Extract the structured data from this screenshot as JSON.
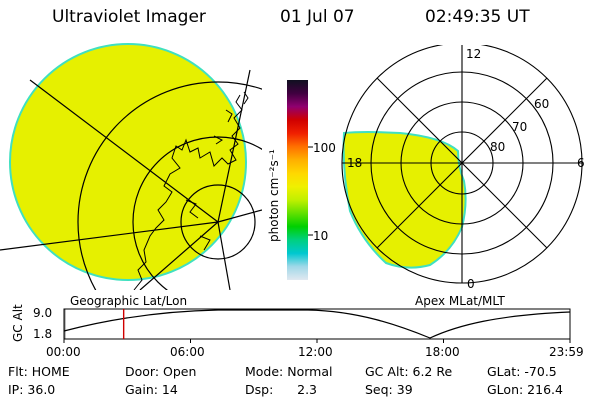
{
  "header": {
    "instrument": "Ultraviolet Imager",
    "date": "01 Jul 07",
    "time": "02:49:35 UT"
  },
  "geo_panel": {
    "label": "Geographic Lat/Lon",
    "fill_color": "#e6f000",
    "limb_color": "#40e0c0"
  },
  "polar_panel": {
    "label": "Apex MLat/MLT",
    "mlt_labels": [
      "12",
      "18",
      "6",
      "0"
    ],
    "lat_labels": [
      "60",
      "70",
      "80"
    ]
  },
  "colorbar": {
    "label": "photon cm⁻²s⁻¹",
    "ticks": [
      "100",
      "10"
    ],
    "scale": "log",
    "colors": [
      "#101020",
      "#400040",
      "#900070",
      "#d00000",
      "#f02000",
      "#ff7000",
      "#ffb000",
      "#ffd800",
      "#f0f000",
      "#c0f000",
      "#60e000",
      "#00d000",
      "#00d080",
      "#00c8d0",
      "#a0d8e8",
      "#e0e8f0"
    ]
  },
  "altitude_plot": {
    "axis_label": "GC Alt",
    "ytick_top": "9.0",
    "ytick_bottom": "1.8",
    "xticks": [
      "00:00",
      "06:00",
      "12:00",
      "18:00",
      "23:59"
    ],
    "current_time_hours": 2.83,
    "marker_color": "#d00000"
  },
  "info": {
    "row1": [
      "Flt: HOME",
      "Door: Open",
      "Mode: Normal",
      "GC Alt: 6.2 Re",
      "GLat: -70.5"
    ],
    "row2": [
      "IP: 36.0",
      "Gain: 14",
      "Dsp:      2.3",
      "Seq: 39",
      "GLon: 216.4"
    ]
  }
}
